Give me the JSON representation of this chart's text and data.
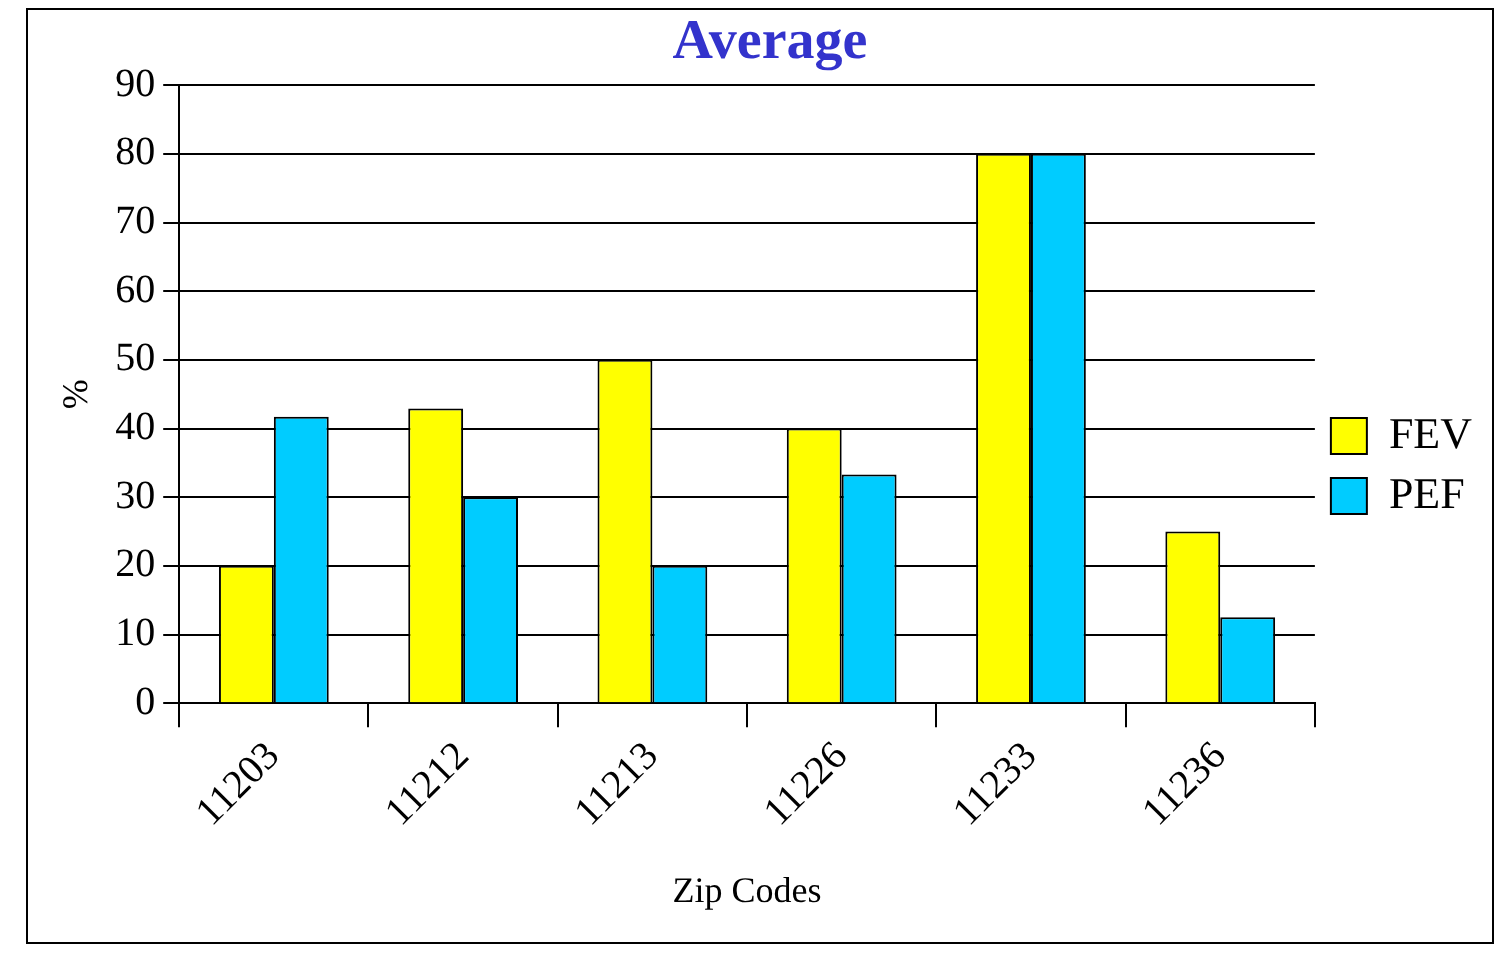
{
  "chart_data": {
    "type": "bar",
    "title": "Average",
    "xlabel": "Zip Codes",
    "ylabel": "%",
    "categories": [
      "11203",
      "11212",
      "11213",
      "11226",
      "11233",
      "11236"
    ],
    "series": [
      {
        "name": "FEV",
        "color": "#ffff00",
        "values": [
          20,
          42.9,
          50,
          40,
          80,
          25
        ]
      },
      {
        "name": "PEF",
        "color": "#00ccff",
        "values": [
          41.7,
          30,
          20,
          33.3,
          80,
          12.5
        ]
      }
    ],
    "ylim": [
      0,
      90
    ],
    "yticks": [
      0,
      10,
      20,
      30,
      40,
      50,
      60,
      70,
      80,
      90
    ],
    "grid": "y",
    "legend": "right"
  }
}
